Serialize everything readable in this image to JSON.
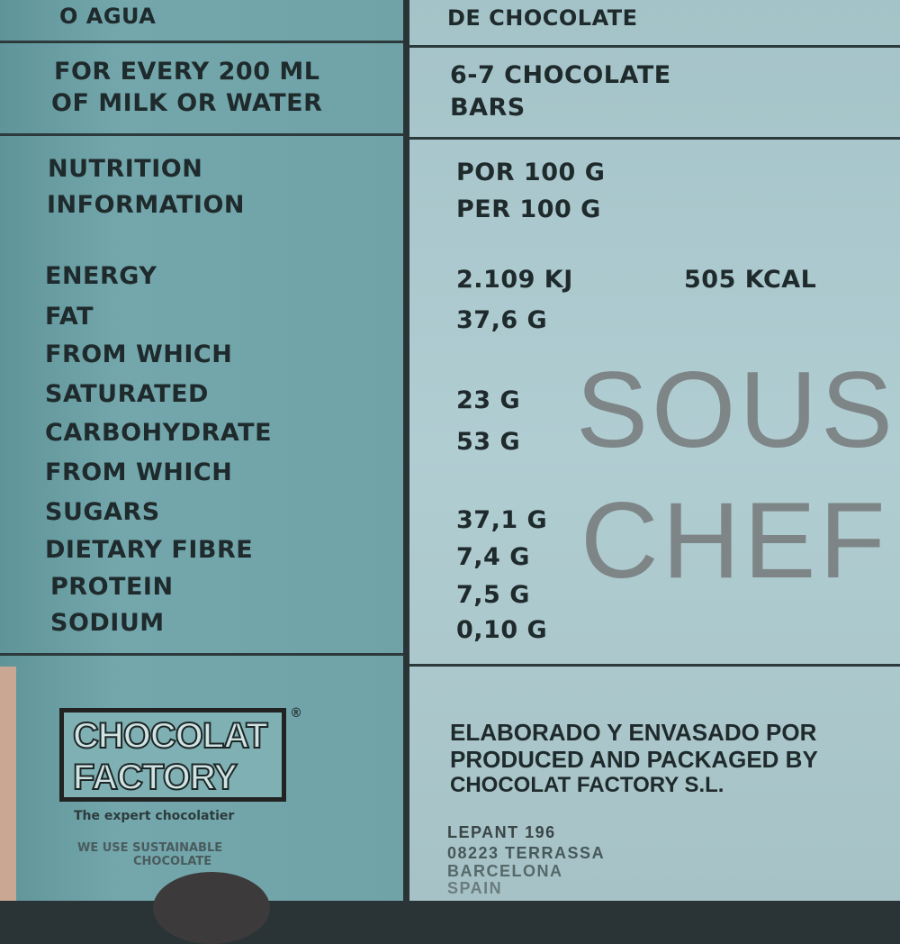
{
  "top": {
    "left_text": "O AGUA",
    "right_text": "DE CHOCOLATE"
  },
  "serving": {
    "left_lines": [
      "FOR EVERY 200 ML",
      "OF MILK OR WATER"
    ],
    "right_lines": [
      "6-7 CHOCOLATE",
      "BARS"
    ]
  },
  "nutrition": {
    "heading_lines": [
      "NUTRITION",
      "INFORMATION"
    ],
    "per_lines": [
      "POR 100 G",
      "PER 100 G"
    ],
    "rows": [
      {
        "label": "ENERGY",
        "value": "2.109 KJ",
        "value2": "505 KCAL"
      },
      {
        "label": "FAT",
        "value": "37,6 G"
      },
      {
        "label": "FROM WHICH",
        "value": ""
      },
      {
        "label": "SATURATED",
        "value": "23 G"
      },
      {
        "label": "CARBOHYDRATE",
        "value": "53 G"
      },
      {
        "label": "FROM WHICH",
        "value": ""
      },
      {
        "label": "SUGARS",
        "value": "37,1 G"
      },
      {
        "label": "DIETARY FIBRE",
        "value": "7,4 G"
      },
      {
        "label": "PROTEIN",
        "value": "7,5 G"
      },
      {
        "label": "SODIUM",
        "value": "0,10 G"
      }
    ]
  },
  "watermark": {
    "line1": "SOUS",
    "line2": "CHEF"
  },
  "brand": {
    "logo_line1": "CHOCOLAT",
    "logo_line2": "FACTORY",
    "registered": "®",
    "tagline": "The expert chocolatier",
    "sustainable_lines": [
      "WE USE SUSTAINABLE",
      "CHOCOLATE"
    ]
  },
  "producer": {
    "lines": [
      "ELABORADO Y ENVASADO POR",
      "PRODUCED AND PACKAGED BY",
      "CHOCOLAT FACTORY S.L."
    ],
    "address": [
      "LEPANT 196",
      "08223 TERRASSA",
      "BARCELONA",
      "SPAIN"
    ]
  },
  "colors": {
    "left_panel": "#6fa3a8",
    "right_panel": "#a9c6cc",
    "text": "#1f2a2c"
  }
}
